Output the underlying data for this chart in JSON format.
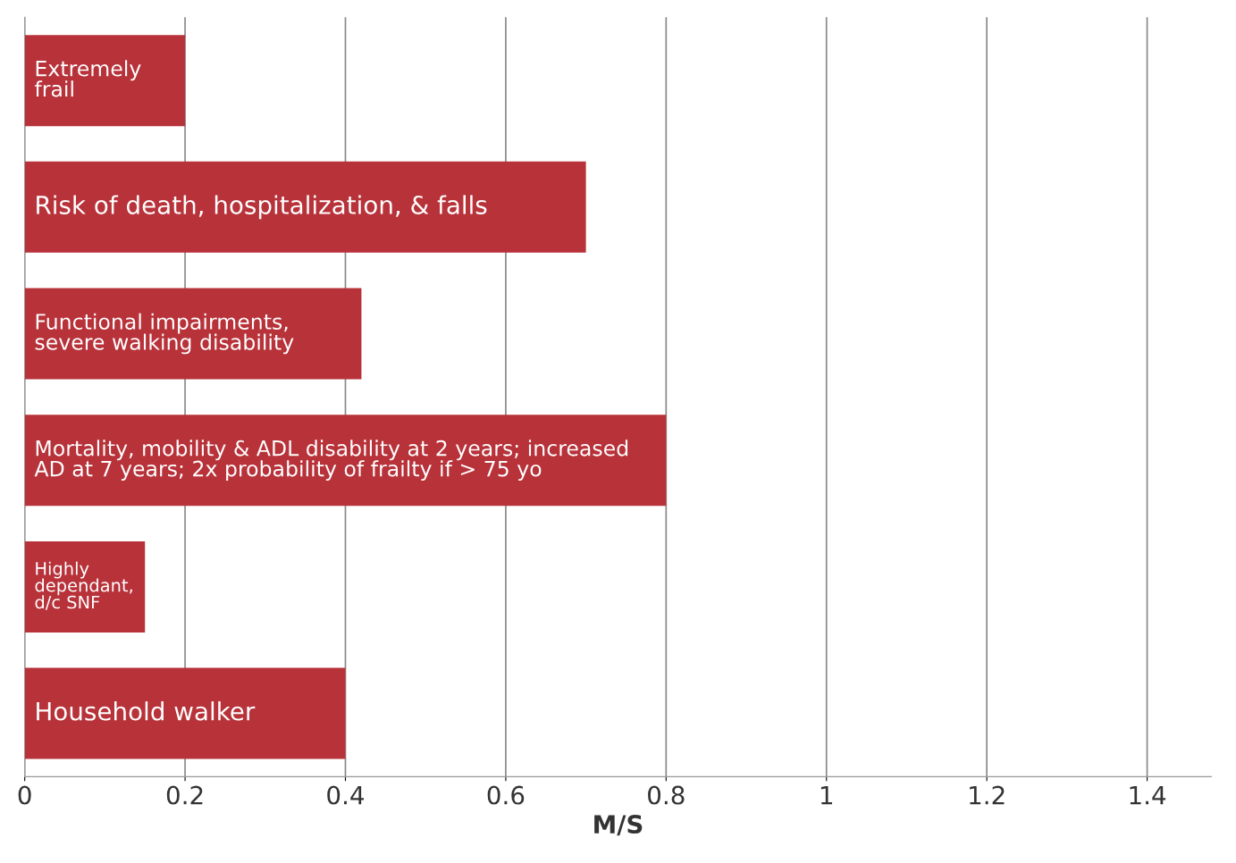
{
  "chart_data": {
    "type": "bar",
    "orientation": "horizontal",
    "xlabel": "M/S",
    "categories": [
      "Extremely\nfrail",
      "Risk of death, hospitalization, & falls",
      "Functional impairments,\nsevere walking disability",
      "Mortality, mobility & ADL disability at 2 years; increased\nAD at 7 years; 2x probability of frailty if > 75 yo",
      "Highly\ndependant,\nd/c SNF",
      "Household walker"
    ],
    "values": [
      0.2,
      0.7,
      0.42,
      0.8,
      0.15,
      0.4
    ],
    "color": "#b8323a",
    "xlim": [
      0,
      1.48
    ],
    "xticks": [
      0,
      0.2,
      0.4,
      0.6,
      0.8,
      1,
      1.2,
      1.4
    ],
    "grid": "x",
    "tick_labels": "x"
  }
}
